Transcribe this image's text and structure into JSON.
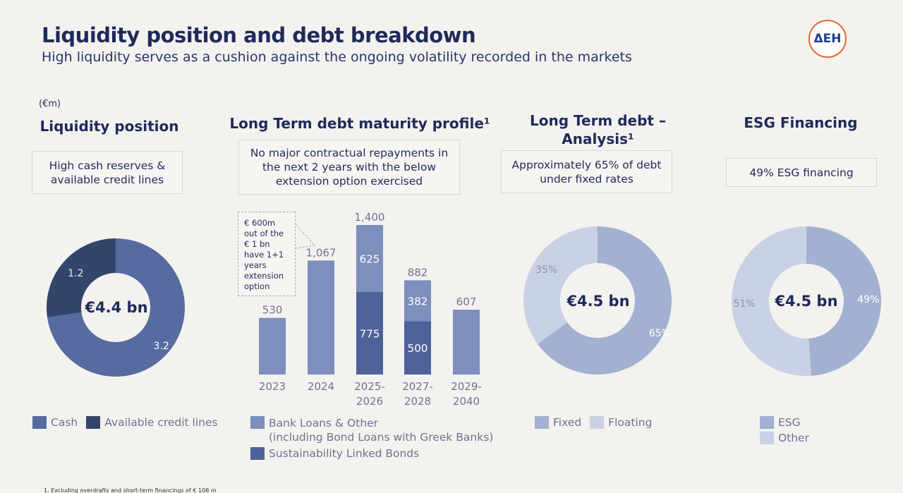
{
  "header": {
    "title": "Liquidity position and debt breakdown",
    "subtitle": "High liquidity serves as a cushion against the ongoing volatility recorded in the markets",
    "unit": "(€m)",
    "logo_text": "ΔEH"
  },
  "colors": {
    "cash": "#566ca0",
    "credit": "#34456c",
    "bank": "#7c8fbd",
    "slb": "#4f6199",
    "fixed": "#a2b1d2",
    "floating": "#c9d1e4",
    "esg": "#a2b1d2",
    "other": "#c9d1e4"
  },
  "panels": {
    "liquidity": {
      "title": "Liquidity position",
      "box": [
        "High cash reserves &",
        "available credit lines"
      ],
      "center": "€4.4 bn",
      "legend": [
        "Cash",
        "Available credit lines"
      ]
    },
    "maturity": {
      "title": "Long Term debt maturity profile¹",
      "box": [
        "No major contractual repayments in",
        "the next 2 years with the below",
        "extension option exercised"
      ],
      "callout": [
        "€ 600m",
        "out of the",
        "€ 1 bn",
        "have 1+1",
        "years",
        "extension",
        "option"
      ],
      "legend": [
        "Bank Loans & Other",
        "(including Bond Loans with Greek Banks)",
        "Sustainability Linked Bonds"
      ]
    },
    "analysis": {
      "title": [
        "Long Term debt –",
        "Analysis¹"
      ],
      "box": [
        "Approximately 65% of debt",
        "under fixed rates"
      ],
      "center": "€4.5 bn",
      "legend": [
        "Fixed",
        "Floating"
      ]
    },
    "esg": {
      "title": "ESG Financing",
      "box": [
        "49% ESG financing"
      ],
      "center": "€4.5 bn",
      "legend": [
        "ESG",
        "Other"
      ]
    }
  },
  "footnote": "1. Excluding overdrafts and short-term financings of € 108 m",
  "chart_data": [
    {
      "type": "pie",
      "donut": true,
      "title": "Liquidity position",
      "labels": [
        "Cash",
        "Available credit lines"
      ],
      "values": [
        3.2,
        1.2
      ],
      "value_labels": [
        "3.2",
        "1.2"
      ],
      "center_label": "€4.4 bn"
    },
    {
      "type": "bar",
      "stacked": true,
      "title": "Long Term debt maturity profile¹",
      "categories": [
        "2023",
        "2024",
        "2025-\n2026",
        "2027-\n2028",
        "2029-\n2040"
      ],
      "series": [
        {
          "name": "Sustainability Linked Bonds",
          "values": [
            0,
            0,
            775,
            500,
            0
          ]
        },
        {
          "name": "Bank Loans & Other (including Bond Loans with Greek Banks)",
          "values": [
            530,
            1067,
            625,
            382,
            607
          ]
        }
      ],
      "totals": [
        "530",
        "1,067",
        "1,400",
        "882",
        "607"
      ],
      "ylim": [
        0,
        1400
      ]
    },
    {
      "type": "pie",
      "donut": true,
      "title": "Long Term debt – Analysis¹",
      "labels": [
        "Fixed",
        "Floating"
      ],
      "values": [
        65,
        35
      ],
      "value_labels": [
        "65%",
        "35%"
      ],
      "center_label": "€4.5 bn"
    },
    {
      "type": "pie",
      "donut": true,
      "title": "ESG Financing",
      "labels": [
        "ESG",
        "Other"
      ],
      "values": [
        49,
        51
      ],
      "value_labels": [
        "49%",
        "51%"
      ],
      "center_label": "€4.5 bn"
    }
  ]
}
